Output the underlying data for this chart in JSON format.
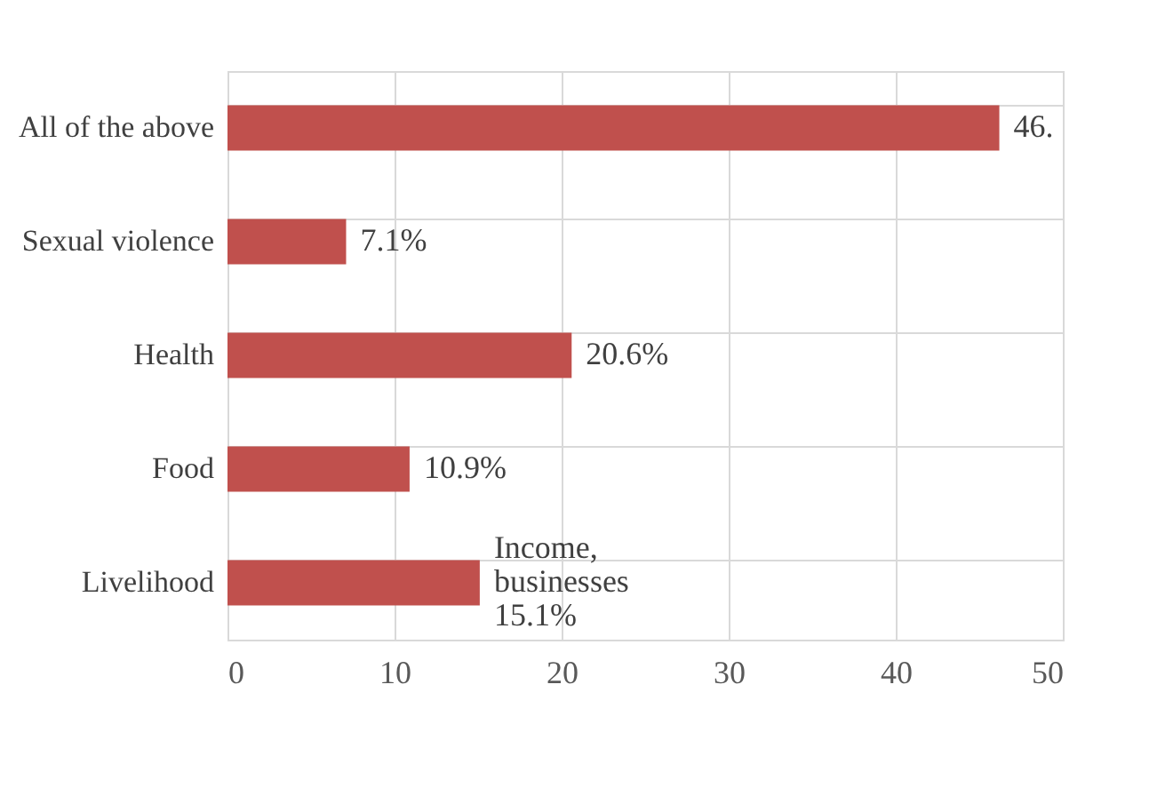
{
  "chart_data": {
    "type": "bar",
    "orientation": "horizontal",
    "categories": [
      "All of the above",
      "Sexual violence",
      "Health",
      "Food",
      "Livelihood"
    ],
    "values": [
      46.2,
      7.1,
      20.6,
      10.9,
      15.1
    ],
    "value_labels": [
      "46.",
      "7.1%",
      "20.6%",
      "10.9%",
      "Income,\nbusinesses\n15.1%"
    ],
    "color": "#c0504d",
    "xlim": [
      0,
      50
    ],
    "xticks": [
      0,
      10,
      20,
      30,
      40,
      50
    ],
    "grid": true
  }
}
